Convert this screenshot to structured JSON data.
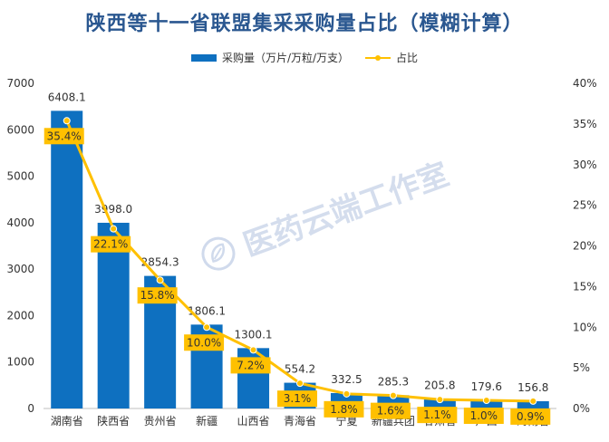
{
  "chart_data": {
    "type": "bar",
    "title": "陕西等十一省联盟集采采购量占比（模糊计算）",
    "categories": [
      "湖南省",
      "陕西省",
      "贵州省",
      "新疆",
      "山西省",
      "青海省",
      "宁夏",
      "新疆兵团",
      "甘肃省",
      "广西",
      "海南省"
    ],
    "series": [
      {
        "name": "采购量（万片/万粒/万支）",
        "type": "bar",
        "axis": "left",
        "values": [
          6408.1,
          3998.0,
          2854.3,
          1806.1,
          1300.1,
          554.2,
          332.5,
          285.3,
          205.8,
          179.6,
          156.8
        ],
        "labels": [
          "6408.1",
          "3998.0",
          "2854.3",
          "1806.1",
          "1300.1",
          "554.2",
          "332.5",
          "285.3",
          "205.8",
          "179.6",
          "156.8"
        ],
        "color": "#0e70c0"
      },
      {
        "name": "占比",
        "type": "line",
        "axis": "right",
        "values": [
          35.4,
          22.1,
          15.8,
          10.0,
          7.2,
          3.1,
          1.8,
          1.6,
          1.1,
          1.0,
          0.9
        ],
        "labels": [
          "35.4%",
          "22.1%",
          "15.8%",
          "10.0%",
          "7.2%",
          "3.1%",
          "1.8%",
          "1.6%",
          "1.1%",
          "1.0%",
          "0.9%"
        ],
        "color": "#ffc000"
      }
    ],
    "y_left": {
      "min": 0,
      "max": 7000,
      "step": 1000,
      "ticks": [
        "0",
        "1000",
        "2000",
        "3000",
        "4000",
        "5000",
        "6000",
        "7000"
      ]
    },
    "y_right": {
      "min": 0,
      "max": 40,
      "step": 5,
      "ticks": [
        "0%",
        "5%",
        "10%",
        "15%",
        "20%",
        "25%",
        "30%",
        "35%",
        "40%"
      ]
    },
    "legend_position": "top-center",
    "grid": false
  },
  "watermark": {
    "text": "医药云端工作室",
    "icon": "leaf-logo-icon"
  }
}
